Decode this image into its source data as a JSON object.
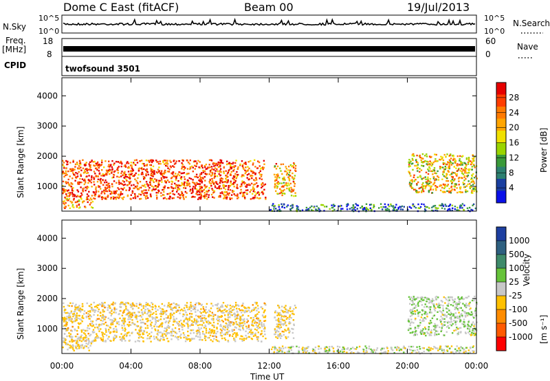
{
  "header": {
    "title": "Dome C East (fitACF)",
    "beam": "Beam 00",
    "date": "19/Jul/2013"
  },
  "top_panels": {
    "nsky": {
      "left_label": "N.Sky",
      "left_ticks": [
        "10^5",
        "10^0"
      ],
      "right_label": "N.Search",
      "right_ticks": [
        "10^5",
        "10^0"
      ],
      "right_label_style": "dotted"
    },
    "freq": {
      "left_label": "Freq.",
      "left_unit": "[MHz]",
      "left_ticks": [
        "18",
        "8"
      ],
      "right_label": "Nave",
      "right_ticks": [
        "60",
        "0"
      ],
      "right_label_style": "dotted"
    },
    "cpid": {
      "label": "CPID",
      "value": "twofsound 3501"
    }
  },
  "colorbars": {
    "power": {
      "label": "Power [dB]",
      "ticks": [
        "28",
        "24",
        "20",
        "16",
        "12",
        "8",
        "4"
      ],
      "colors": [
        "#e60000",
        "#ff3d00",
        "#ff7a00",
        "#ffa500",
        "#f0e000",
        "#9ad400",
        "#3a9a3a",
        "#2d8070",
        "#1a3fa0",
        "#0a10e8"
      ]
    },
    "velocity": {
      "label": "Velocity",
      "unit": "[m s⁻¹]",
      "ticks": [
        "1000",
        "500",
        "100",
        "25",
        "-25",
        "-100",
        "-500",
        "-1000"
      ],
      "colors": [
        "#1d3fa0",
        "#2e6080",
        "#3e8a6a",
        "#66c33a",
        "#c8c8c8",
        "#ffc000",
        "#ff8c00",
        "#ff5a00",
        "#ff0000"
      ]
    }
  },
  "chart_data": [
    {
      "type": "line",
      "series": [
        {
          "name": "N.Sky",
          "values": [
            3,
            3,
            3,
            3,
            4,
            3,
            3,
            3,
            3,
            3,
            3,
            3,
            3,
            3,
            3,
            3,
            3,
            3,
            3,
            3,
            3,
            3,
            3,
            4
          ]
        }
      ],
      "ylabel": "N.Sky",
      "yscale": "log",
      "ylim": [
        "10^0",
        "10^5"
      ]
    },
    {
      "type": "bar",
      "series": [
        {
          "name": "Freq.",
          "values": [
            11,
            11,
            11,
            11,
            11,
            11,
            11,
            11,
            11,
            11,
            11,
            11,
            11,
            11,
            11,
            11,
            11,
            11,
            11,
            11,
            11,
            11,
            11,
            11
          ]
        }
      ],
      "ylabel": "Freq. [MHz]",
      "ylim": [
        8,
        18
      ]
    },
    {
      "type": "heatmap",
      "ylabel": "Slant Range [km]",
      "yticks": [
        "1000",
        "2000",
        "3000",
        "4000"
      ],
      "ylim": [
        180,
        4600
      ],
      "xlim": [
        "00:00",
        "24:00"
      ],
      "colorbar": "Power [dB]",
      "clim": [
        0,
        30
      ],
      "echo_regions": [
        {
          "t_start": "00:00",
          "t_end": "11:45",
          "range_km": [
            600,
            1900
          ],
          "power_db": 26
        },
        {
          "t_start": "00:00",
          "t_end": "01:45",
          "range_km": [
            300,
            650
          ],
          "power_db": 22
        },
        {
          "t_start": "12:15",
          "t_end": "13:30",
          "range_km": [
            700,
            1800
          ],
          "power_db": 20
        },
        {
          "t_start": "12:00",
          "t_end": "23:59",
          "range_km": [
            200,
            450
          ],
          "power_db": 6
        },
        {
          "t_start": "20:00",
          "t_end": "23:59",
          "range_km": [
            800,
            2100
          ],
          "power_db": 18
        }
      ]
    },
    {
      "type": "heatmap",
      "ylabel": "Slant Range [km]",
      "yticks": [
        "1000",
        "2000",
        "3000",
        "4000"
      ],
      "ylim": [
        180,
        4600
      ],
      "xlim": [
        "00:00",
        "24:00"
      ],
      "xticks": [
        "00:00",
        "04:00",
        "08:00",
        "12:00",
        "16:00",
        "20:00",
        "00:00"
      ],
      "xlabel": "Time UT",
      "colorbar": "Velocity [m s⁻¹]",
      "clim": [
        -1000,
        1000
      ],
      "echo_regions": [
        {
          "t_start": "00:00",
          "t_end": "11:45",
          "range_km": [
            600,
            1900
          ],
          "velocity_ms": -150
        },
        {
          "t_start": "00:00",
          "t_end": "01:45",
          "range_km": [
            300,
            650
          ],
          "velocity_ms": -120
        },
        {
          "t_start": "12:15",
          "t_end": "13:30",
          "range_km": [
            700,
            1800
          ],
          "velocity_ms": -150
        },
        {
          "t_start": "12:00",
          "t_end": "23:59",
          "range_km": [
            200,
            450
          ],
          "velocity_ms": 0
        },
        {
          "t_start": "20:00",
          "t_end": "23:59",
          "range_km": [
            800,
            2100
          ],
          "velocity_ms": 100
        }
      ]
    }
  ]
}
